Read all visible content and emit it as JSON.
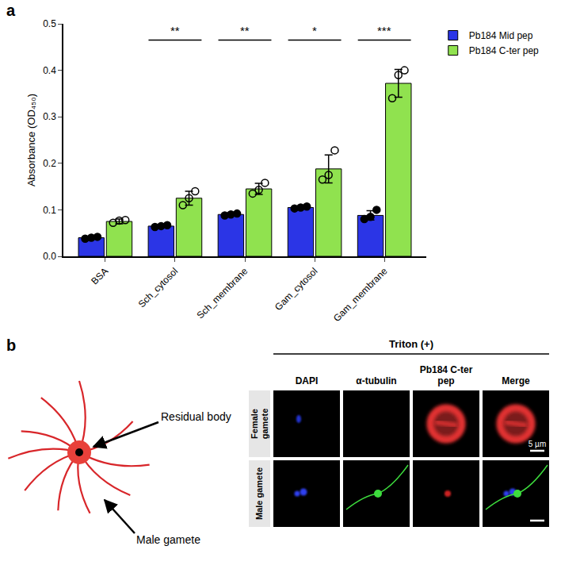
{
  "chart_data": {
    "type": "bar",
    "panel_label": "a",
    "y_label": "Absorbance (OD₄₅₀)",
    "categories": [
      "BSA",
      "Sch_cytosol",
      "Sch_membrane",
      "Gam_cytosol",
      "Gam_membrane"
    ],
    "series": [
      {
        "name": "Pb184 Mid pep",
        "color": "#2b35e6",
        "marker": "circle",
        "values": [
          0.04,
          0.065,
          0.09,
          0.105,
          0.088
        ],
        "error": [
          0.003,
          0.003,
          0.003,
          0.003,
          0.01
        ],
        "points": [
          [
            0.038,
            0.04,
            0.042
          ],
          [
            0.063,
            0.065,
            0.067
          ],
          [
            0.088,
            0.09,
            0.092
          ],
          [
            0.103,
            0.105,
            0.107
          ],
          [
            0.08,
            0.085,
            0.1
          ]
        ]
      },
      {
        "name": "Pb184 C-ter pep",
        "color": "#90e24f",
        "marker": "circle-open",
        "values": [
          0.075,
          0.125,
          0.145,
          0.188,
          0.372
        ],
        "error": [
          0.005,
          0.015,
          0.012,
          0.03,
          0.03
        ],
        "points": [
          [
            0.072,
            0.077,
            0.078
          ],
          [
            0.11,
            0.125,
            0.14
          ],
          [
            0.135,
            0.143,
            0.158
          ],
          [
            0.165,
            0.175,
            0.228
          ],
          [
            0.34,
            0.39,
            0.4
          ]
        ]
      }
    ],
    "ylim": [
      0,
      0.5
    ],
    "yticks": [
      {
        "value": 0,
        "label": "0.0"
      },
      0.1,
      0.2,
      0.3,
      0.4,
      0.5
    ],
    "grid": false,
    "legend": "top right",
    "annotations": [
      {
        "category": "Sch_cytosol",
        "text": "**"
      },
      {
        "category": "Sch_membrane",
        "text": "**"
      },
      {
        "category": "Gam_cytosol",
        "text": "*"
      },
      {
        "category": "Gam_membrane",
        "text": "***"
      }
    ]
  },
  "panel_b": {
    "panel_label": "b",
    "schematic": {
      "residual_body": "Residual body",
      "male_gamete": "Male gamete"
    },
    "header": "Triton (+)",
    "columns": [
      "DAPI",
      "α-tubulin",
      "Pb184 C-ter pep",
      "Merge"
    ],
    "rows": [
      "Female gamete",
      "Male gamete"
    ],
    "scale_bar": "5 µm"
  }
}
